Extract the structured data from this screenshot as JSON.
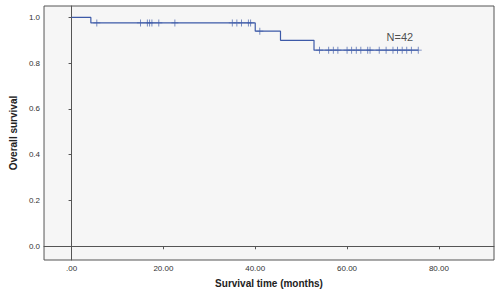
{
  "chart_data": {
    "type": "line",
    "line_style": "step",
    "color": "#3d5aa8",
    "x_label": "Survival time (months)",
    "y_label": "Overall survival",
    "x": [
      0,
      4.2,
      40,
      45.5,
      52.8,
      75.5
    ],
    "values": [
      1.0,
      0.976,
      0.94,
      0.9,
      0.857,
      0.857
    ],
    "censored": {
      "marker": "plus",
      "x": [
        5.5,
        15,
        16.5,
        17,
        17.5,
        19,
        22.5,
        35,
        36,
        37,
        38.5,
        39,
        41,
        54,
        56,
        57,
        58,
        60,
        61,
        62,
        63,
        64.5,
        65,
        67,
        68.5,
        70,
        71,
        72,
        73,
        74,
        75.5
      ],
      "values": [
        0.976,
        0.976,
        0.976,
        0.976,
        0.976,
        0.976,
        0.976,
        0.976,
        0.976,
        0.976,
        0.976,
        0.976,
        0.94,
        0.857,
        0.857,
        0.857,
        0.857,
        0.857,
        0.857,
        0.857,
        0.857,
        0.857,
        0.857,
        0.857,
        0.857,
        0.857,
        0.857,
        0.857,
        0.857,
        0.857,
        0.857
      ]
    },
    "annotations": [
      {
        "text": "N=42",
        "x": 71.5,
        "y": 0.915
      }
    ],
    "xlim": [
      -6,
      92
    ],
    "xticks": [
      {
        "value": 0,
        "label": ".00"
      },
      {
        "value": 20,
        "label": "20.00"
      },
      {
        "value": 40,
        "label": "40.00"
      },
      {
        "value": 60,
        "label": "60.00"
      },
      {
        "value": 80,
        "label": "80.00"
      }
    ],
    "ylim": [
      -0.06,
      1.05
    ],
    "yticks": [
      {
        "value": 0,
        "label": "0.0"
      },
      0.2,
      0.4,
      0.6,
      0.8,
      {
        "value": 1,
        "label": "1.0"
      }
    ],
    "grid": false
  }
}
